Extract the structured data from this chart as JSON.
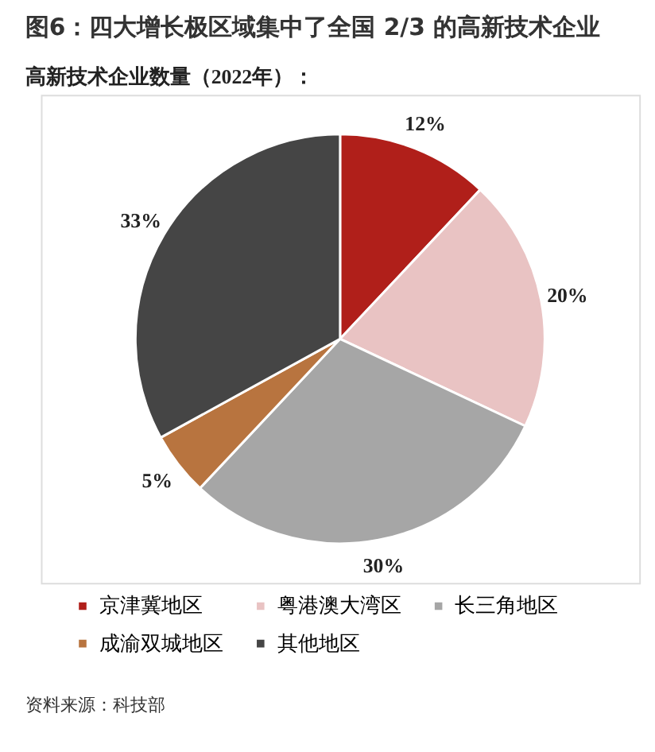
{
  "chart_data": {
    "type": "pie",
    "title": "图6：四大增长极区域集中了全国 2/3 的高新技术企业",
    "subtitle": "高新技术企业数量（2022年）：",
    "categories": [
      "京津冀地区",
      "粤港澳大湾区",
      "长三角地区",
      "成渝双城地区",
      "其他地区"
    ],
    "values": [
      12,
      20,
      30,
      5,
      33
    ],
    "colors": [
      "#b01f1a",
      "#e9c3c3",
      "#a6a6a6",
      "#b8743f",
      "#454545"
    ],
    "value_labels": [
      "12%",
      "20%",
      "30%",
      "5%",
      "33%"
    ],
    "legend": "bottom",
    "annotations": [
      "资料来源：科技部"
    ]
  }
}
